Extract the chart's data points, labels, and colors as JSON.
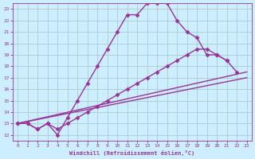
{
  "xlabel": "Windchill (Refroidissement éolien,°C)",
  "bg_color": "#cceeff",
  "line_color": "#993399",
  "grid_color": "#aacccc",
  "xlim": [
    -0.5,
    23.5
  ],
  "ylim": [
    11.5,
    23.5
  ],
  "xticks": [
    0,
    1,
    2,
    3,
    4,
    5,
    6,
    7,
    8,
    9,
    10,
    11,
    12,
    13,
    14,
    15,
    16,
    17,
    18,
    19,
    20,
    21,
    22,
    23
  ],
  "yticks": [
    12,
    13,
    14,
    15,
    16,
    17,
    18,
    19,
    20,
    21,
    22,
    23
  ],
  "line1_x": [
    0,
    1,
    2,
    3,
    4,
    5,
    6,
    7,
    8,
    9,
    10,
    11,
    12,
    13,
    14,
    15,
    16,
    17,
    18,
    19,
    20,
    21,
    22
  ],
  "line1_y": [
    13,
    13,
    12.5,
    13,
    12,
    13.5,
    15,
    16.5,
    18,
    19.5,
    21,
    22.5,
    22.5,
    23.5,
    23.5,
    23.5,
    22,
    21,
    20.5,
    19,
    19,
    18.5,
    17.5
  ],
  "line2_x": [
    0,
    1,
    2,
    3,
    4,
    5,
    6,
    7,
    8,
    9,
    10,
    11,
    12,
    13,
    14,
    15,
    16,
    17,
    18,
    19,
    20,
    21
  ],
  "line2_y": [
    13,
    13,
    12.5,
    13,
    12.5,
    13,
    13.5,
    14,
    14.5,
    15,
    15.5,
    16,
    16.5,
    17,
    17.5,
    18,
    18.5,
    19,
    19.5,
    19.5,
    19,
    18.5
  ],
  "line3_x": [
    0,
    23
  ],
  "line3_y": [
    13,
    17.5
  ],
  "line4_x": [
    0,
    23
  ],
  "line4_y": [
    13,
    17
  ],
  "marker": "D",
  "markersize": 2.5,
  "linewidth": 1.0
}
